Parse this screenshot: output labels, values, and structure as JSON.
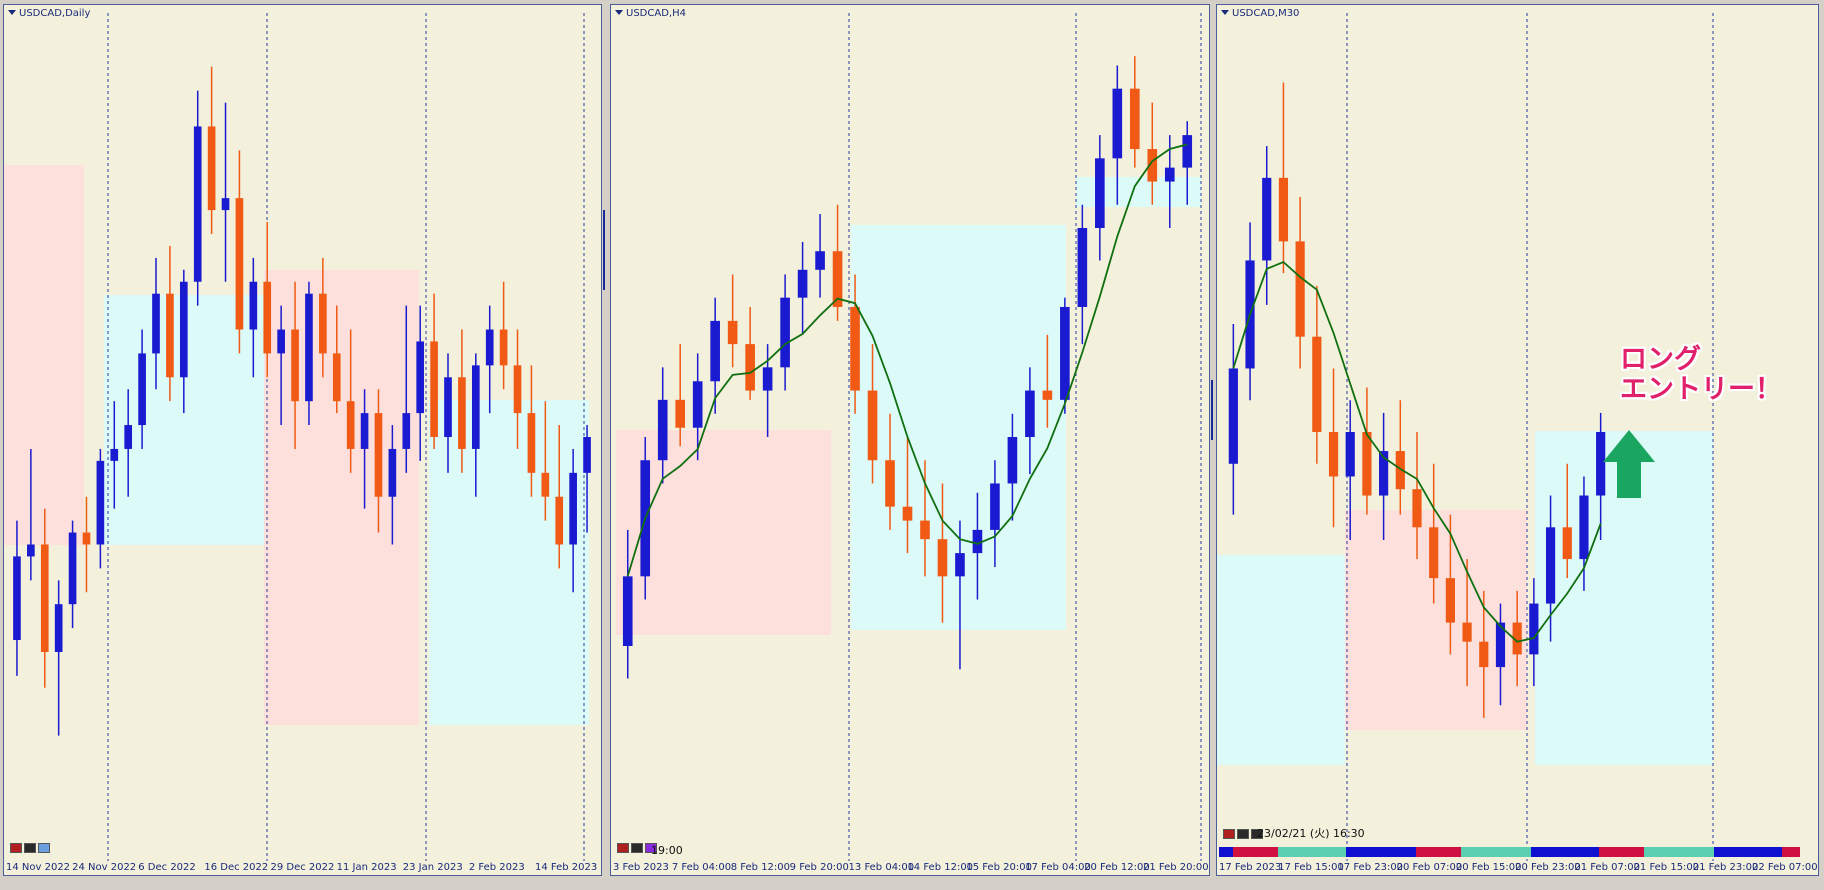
{
  "colors": {
    "bull": "#1a1ad0",
    "bear": "#f05a14",
    "ma": "#107010",
    "zone_pink": "#fde0dc",
    "zone_cyan": "#dcfaf8",
    "background": "#f3f0dc",
    "grid": "#2a3aa0",
    "arrow": "#1aa560",
    "annotation": "#e0206a"
  },
  "annotation": {
    "line1": "ロング",
    "line2": "エントリー！"
  },
  "panels": [
    {
      "id": "daily",
      "title": "USDCAD,Daily",
      "bottom_text": "",
      "x_labels": [
        "14 Nov 2022",
        "24 Nov 2022",
        "6 Dec 2022",
        "16 Dec 2022",
        "29 Dec 2022",
        "11 Jan 2023",
        "23 Jan 2023",
        "2 Feb 2023",
        "14 Feb 2023"
      ],
      "chart_data": {
        "type": "candlestick",
        "candles": [
          [
            1.336,
            1.346,
            1.333,
            1.343
          ],
          [
            1.343,
            1.352,
            1.341,
            1.344
          ],
          [
            1.344,
            1.347,
            1.332,
            1.335
          ],
          [
            1.335,
            1.341,
            1.328,
            1.339
          ],
          [
            1.339,
            1.346,
            1.337,
            1.345
          ],
          [
            1.345,
            1.348,
            1.34,
            1.344
          ],
          [
            1.344,
            1.352,
            1.342,
            1.351
          ],
          [
            1.351,
            1.356,
            1.347,
            1.352
          ],
          [
            1.352,
            1.357,
            1.348,
            1.354
          ],
          [
            1.354,
            1.362,
            1.352,
            1.36
          ],
          [
            1.36,
            1.368,
            1.357,
            1.365
          ],
          [
            1.365,
            1.369,
            1.356,
            1.358
          ],
          [
            1.358,
            1.367,
            1.355,
            1.366
          ],
          [
            1.366,
            1.382,
            1.364,
            1.379
          ],
          [
            1.379,
            1.384,
            1.37,
            1.372
          ],
          [
            1.372,
            1.381,
            1.366,
            1.373
          ],
          [
            1.373,
            1.377,
            1.36,
            1.362
          ],
          [
            1.362,
            1.368,
            1.358,
            1.366
          ],
          [
            1.366,
            1.371,
            1.358,
            1.36
          ],
          [
            1.36,
            1.364,
            1.354,
            1.362
          ],
          [
            1.362,
            1.366,
            1.352,
            1.356
          ],
          [
            1.356,
            1.366,
            1.354,
            1.365
          ],
          [
            1.365,
            1.368,
            1.358,
            1.36
          ],
          [
            1.36,
            1.364,
            1.355,
            1.356
          ],
          [
            1.356,
            1.362,
            1.35,
            1.352
          ],
          [
            1.352,
            1.357,
            1.347,
            1.355
          ],
          [
            1.355,
            1.357,
            1.345,
            1.348
          ],
          [
            1.348,
            1.354,
            1.344,
            1.352
          ],
          [
            1.352,
            1.364,
            1.35,
            1.355
          ],
          [
            1.355,
            1.364,
            1.351,
            1.361
          ],
          [
            1.361,
            1.365,
            1.352,
            1.353
          ],
          [
            1.353,
            1.36,
            1.35,
            1.358
          ],
          [
            1.358,
            1.362,
            1.35,
            1.352
          ],
          [
            1.352,
            1.36,
            1.348,
            1.359
          ],
          [
            1.359,
            1.364,
            1.355,
            1.362
          ],
          [
            1.362,
            1.366,
            1.357,
            1.359
          ],
          [
            1.359,
            1.362,
            1.352,
            1.355
          ],
          [
            1.355,
            1.359,
            1.348,
            1.35
          ],
          [
            1.35,
            1.356,
            1.346,
            1.348
          ],
          [
            1.348,
            1.354,
            1.342,
            1.344
          ],
          [
            1.344,
            1.352,
            1.34,
            1.35
          ],
          [
            1.35,
            1.354,
            1.345,
            1.353
          ]
        ],
        "ylim": [
          1.318,
          1.388
        ]
      }
    },
    {
      "id": "h4",
      "title": "USDCAD,H4",
      "bottom_text": "19:00",
      "x_labels": [
        "3 Feb 2023",
        "7 Feb 04:00",
        "8 Feb 12:00",
        "9 Feb 20:00",
        "13 Feb 04:00",
        "14 Feb 12:00",
        "15 Feb 20:00",
        "17 Feb 04:00",
        "20 Feb 12:00",
        "21 Feb 20:00"
      ],
      "chart_data": {
        "type": "candlestick",
        "candles": [
          [
            1.3345,
            1.337,
            1.3338,
            1.336
          ],
          [
            1.336,
            1.339,
            1.3355,
            1.3385
          ],
          [
            1.3385,
            1.3405,
            1.338,
            1.3398
          ],
          [
            1.3398,
            1.341,
            1.3388,
            1.3392
          ],
          [
            1.3392,
            1.3408,
            1.3385,
            1.3402
          ],
          [
            1.3402,
            1.342,
            1.3395,
            1.3415
          ],
          [
            1.3415,
            1.3425,
            1.3405,
            1.341
          ],
          [
            1.341,
            1.3418,
            1.3398,
            1.34
          ],
          [
            1.34,
            1.341,
            1.339,
            1.3405
          ],
          [
            1.3405,
            1.3425,
            1.34,
            1.342
          ],
          [
            1.342,
            1.3432,
            1.3412,
            1.3426
          ],
          [
            1.3426,
            1.3438,
            1.342,
            1.343
          ],
          [
            1.343,
            1.344,
            1.3415,
            1.3418
          ],
          [
            1.3418,
            1.3425,
            1.3395,
            1.34
          ],
          [
            1.34,
            1.341,
            1.338,
            1.3385
          ],
          [
            1.3385,
            1.3395,
            1.337,
            1.3375
          ],
          [
            1.3375,
            1.339,
            1.3365,
            1.3372
          ],
          [
            1.3372,
            1.3385,
            1.336,
            1.3368
          ],
          [
            1.3368,
            1.338,
            1.335,
            1.336
          ],
          [
            1.336,
            1.3372,
            1.334,
            1.3365
          ],
          [
            1.3365,
            1.3378,
            1.3355,
            1.337
          ],
          [
            1.337,
            1.3385,
            1.3362,
            1.338
          ],
          [
            1.338,
            1.3395,
            1.3372,
            1.339
          ],
          [
            1.339,
            1.3405,
            1.3382,
            1.34
          ],
          [
            1.34,
            1.3412,
            1.3392,
            1.3398
          ],
          [
            1.3398,
            1.342,
            1.3395,
            1.3418
          ],
          [
            1.3418,
            1.344,
            1.341,
            1.3435
          ],
          [
            1.3435,
            1.3455,
            1.3428,
            1.345
          ],
          [
            1.345,
            1.347,
            1.344,
            1.3465
          ],
          [
            1.3465,
            1.3472,
            1.3448,
            1.3452
          ],
          [
            1.3452,
            1.3462,
            1.344,
            1.3445
          ],
          [
            1.3445,
            1.3455,
            1.3435,
            1.3448
          ],
          [
            1.3448,
            1.3458,
            1.344,
            1.3455
          ]
        ],
        "ylim": [
          1.33,
          1.348
        ]
      }
    },
    {
      "id": "m30",
      "title": "USDCAD,M30",
      "bottom_text": "23/02/21 (火) 16:30",
      "x_labels": [
        "17 Feb 2023",
        "17 Feb 15:00",
        "17 Feb 23:00",
        "20 Feb 07:00",
        "20 Feb 15:00",
        "20 Feb 23:00",
        "21 Feb 07:00",
        "21 Feb 15:00",
        "21 Feb 23:00",
        "22 Feb 07:00"
      ],
      "chart_data": {
        "type": "candlestick",
        "candles": [
          [
            1.344,
            1.3462,
            1.3432,
            1.3455
          ],
          [
            1.3455,
            1.3478,
            1.345,
            1.3472
          ],
          [
            1.3472,
            1.349,
            1.3465,
            1.3485
          ],
          [
            1.3485,
            1.35,
            1.347,
            1.3475
          ],
          [
            1.3475,
            1.3482,
            1.3455,
            1.346
          ],
          [
            1.346,
            1.3468,
            1.344,
            1.3445
          ],
          [
            1.3445,
            1.3455,
            1.343,
            1.3438
          ],
          [
            1.3438,
            1.345,
            1.3428,
            1.3445
          ],
          [
            1.3445,
            1.3452,
            1.3432,
            1.3435
          ],
          [
            1.3435,
            1.3448,
            1.3428,
            1.3442
          ],
          [
            1.3442,
            1.345,
            1.3432,
            1.3436
          ],
          [
            1.3436,
            1.3445,
            1.3425,
            1.343
          ],
          [
            1.343,
            1.344,
            1.3418,
            1.3422
          ],
          [
            1.3422,
            1.3432,
            1.341,
            1.3415
          ],
          [
            1.3415,
            1.3425,
            1.3405,
            1.3412
          ],
          [
            1.3412,
            1.342,
            1.34,
            1.3408
          ],
          [
            1.3408,
            1.3418,
            1.3402,
            1.3415
          ],
          [
            1.3415,
            1.342,
            1.3405,
            1.341
          ],
          [
            1.341,
            1.3422,
            1.3405,
            1.3418
          ],
          [
            1.3418,
            1.3435,
            1.3412,
            1.343
          ],
          [
            1.343,
            1.344,
            1.3422,
            1.3425
          ],
          [
            1.3425,
            1.3438,
            1.342,
            1.3435
          ],
          [
            1.3435,
            1.3448,
            1.3428,
            1.3445
          ]
        ],
        "ylim": [
          1.338,
          1.351
        ]
      }
    }
  ]
}
